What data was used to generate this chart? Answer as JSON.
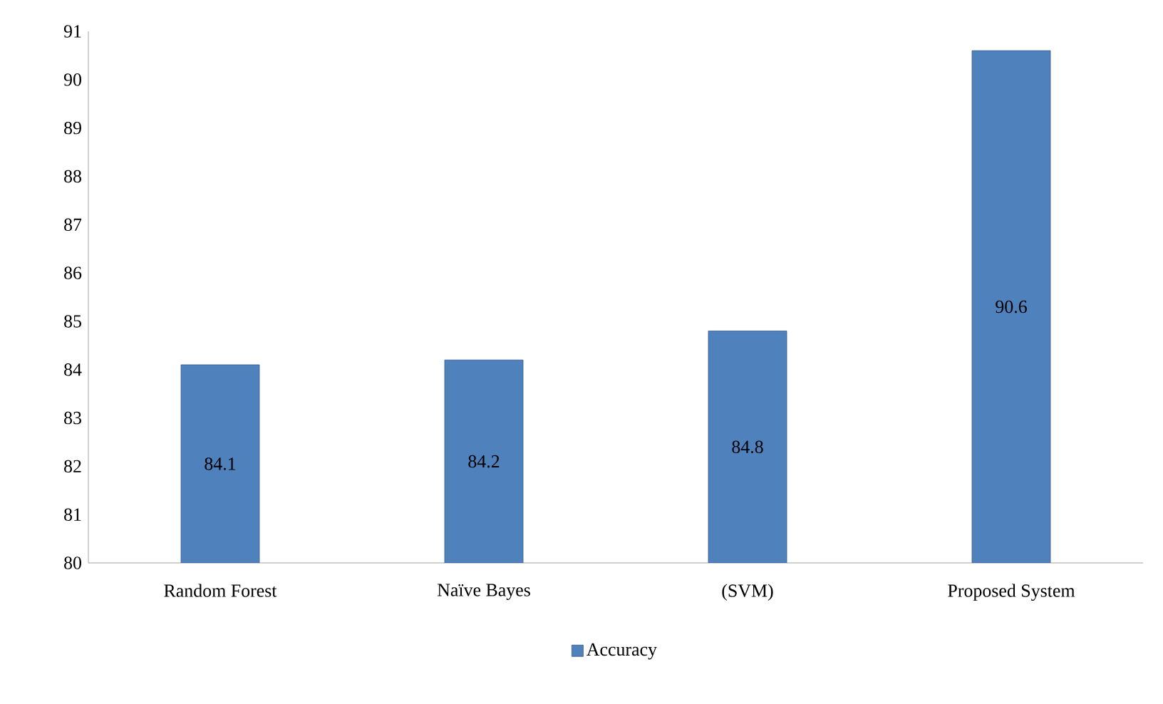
{
  "chart_data": {
    "type": "bar",
    "categories": [
      "Random Forest",
      "Naïve Bayes",
      "(SVM)",
      "Proposed System"
    ],
    "series": [
      {
        "name": "Accuracy",
        "color": "#4f81bd",
        "values": [
          84.1,
          84.2,
          84.8,
          90.6
        ]
      }
    ],
    "ylim": [
      80,
      91
    ],
    "yticks": [
      80,
      81,
      82,
      83,
      84,
      85,
      86,
      87,
      88,
      89,
      90,
      91
    ],
    "data_labels": true,
    "grid": false,
    "legend": "bottom"
  }
}
